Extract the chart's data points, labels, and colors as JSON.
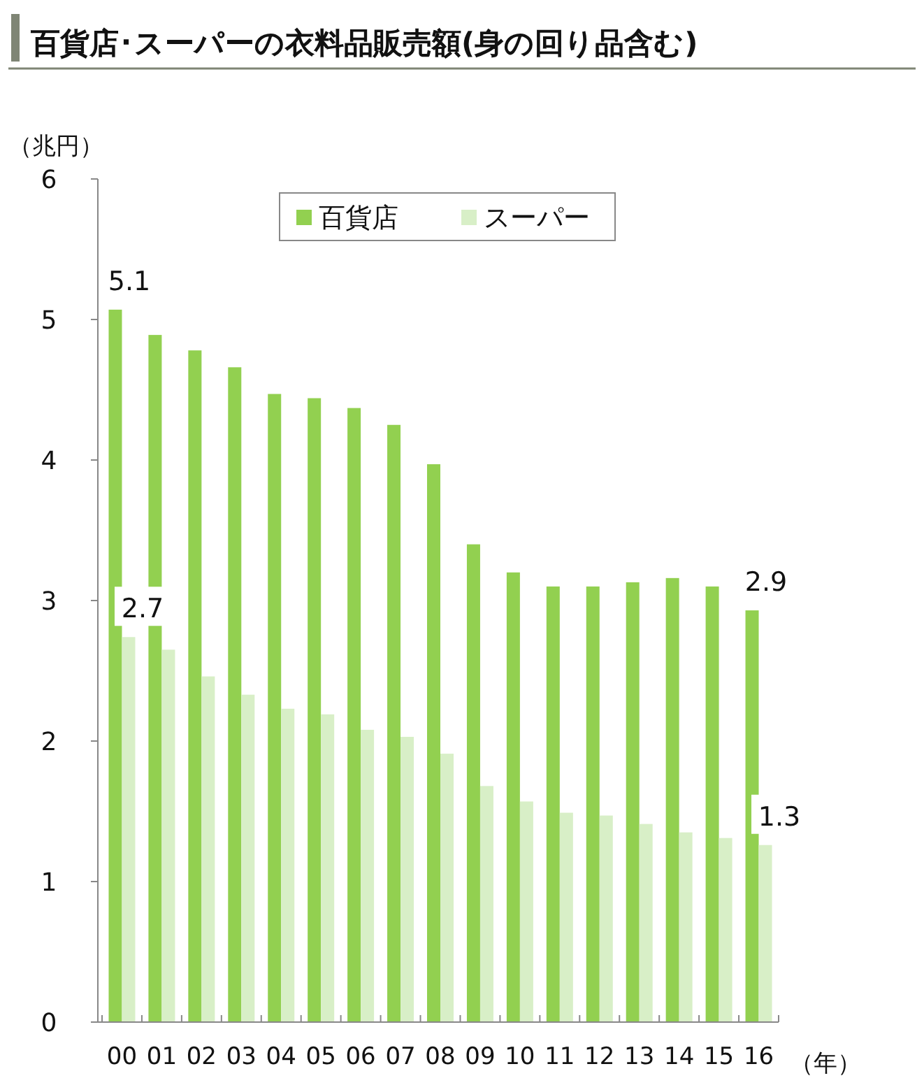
{
  "chart_data": {
    "type": "bar",
    "title": "百貨店･スーパーの衣料品販売額(身の回り品含む)",
    "ylabel": "（兆円）",
    "xlabel": "（年）",
    "categories": [
      "00",
      "01",
      "02",
      "03",
      "04",
      "05",
      "06",
      "07",
      "08",
      "09",
      "10",
      "11",
      "12",
      "13",
      "14",
      "15",
      "16"
    ],
    "series": [
      {
        "name": "百貨店",
        "color": "#92d050",
        "values": [
          5.07,
          4.89,
          4.78,
          4.66,
          4.47,
          4.44,
          4.37,
          4.25,
          3.97,
          3.4,
          3.2,
          3.1,
          3.1,
          3.13,
          3.16,
          3.1,
          2.93
        ],
        "value_labels": [
          "5.1",
          null,
          null,
          null,
          null,
          null,
          null,
          null,
          null,
          null,
          null,
          null,
          null,
          null,
          null,
          null,
          "2.9"
        ]
      },
      {
        "name": "スーパー",
        "color": "#d8efc7",
        "values": [
          2.74,
          2.65,
          2.46,
          2.33,
          2.23,
          2.19,
          2.08,
          2.03,
          1.91,
          1.68,
          1.57,
          1.49,
          1.47,
          1.41,
          1.35,
          1.31,
          1.26
        ],
        "value_labels": [
          "2.7",
          null,
          null,
          null,
          null,
          null,
          null,
          null,
          null,
          null,
          null,
          null,
          null,
          null,
          null,
          null,
          "1.3"
        ]
      }
    ],
    "ylim": [
      0,
      6
    ],
    "yticks": [
      0,
      1,
      2,
      3,
      4,
      5,
      6
    ],
    "grid": false,
    "legend": "top"
  }
}
